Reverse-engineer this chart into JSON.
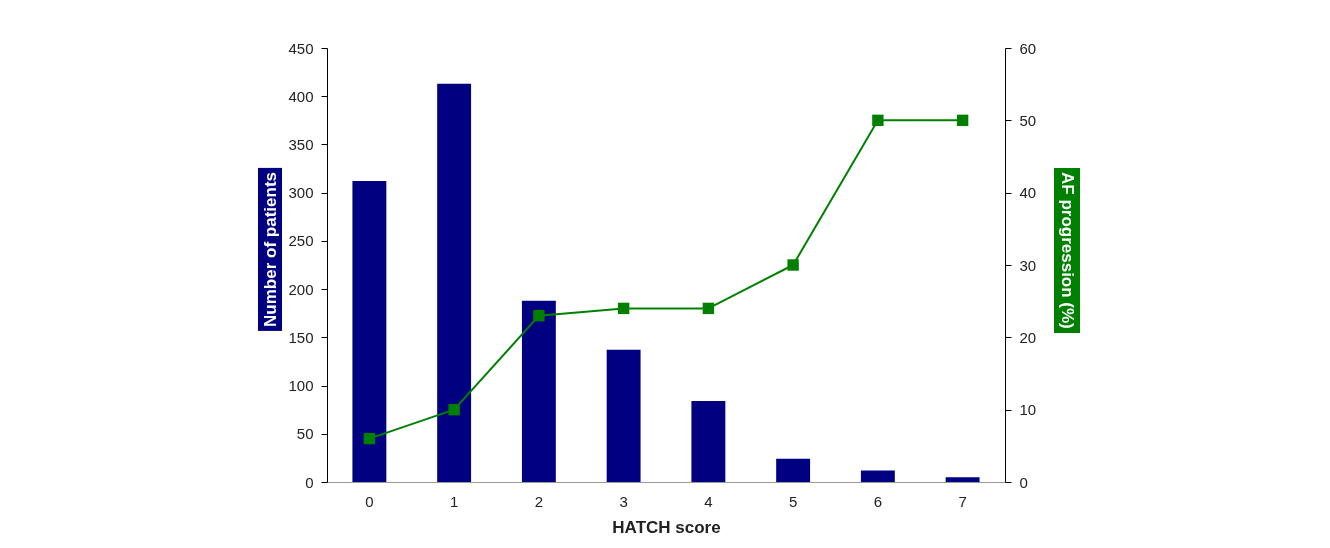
{
  "chart_data": {
    "type": "bar",
    "xlabel": "HATCH score",
    "ylabel": "Number of patients",
    "y2label": "AF progression (%)",
    "categories": [
      "0",
      "1",
      "2",
      "3",
      "4",
      "5",
      "6",
      "7"
    ],
    "series": [
      {
        "color": "#000080",
        "values": [
          312,
          413,
          188,
          137,
          84,
          24,
          12,
          5
        ]
      },
      {
        "type": "line",
        "axis": "y2",
        "color": "#008000",
        "marker": "square",
        "values": [
          6,
          10,
          23,
          24,
          24,
          30,
          50,
          50
        ]
      }
    ],
    "ylim": [
      0,
      450
    ],
    "yticks": [
      0,
      50,
      100,
      150,
      200,
      250,
      300,
      350,
      400,
      450
    ],
    "y2lim": [
      0,
      60
    ],
    "y2ticks": [
      0,
      10,
      20,
      30,
      40,
      50,
      60
    ]
  }
}
